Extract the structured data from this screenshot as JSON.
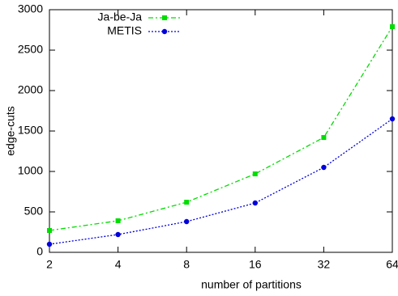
{
  "chart_data": {
    "type": "line",
    "x_label": "number of partitions",
    "y_label": "edge-cuts",
    "x": [
      2,
      4,
      8,
      16,
      32,
      64
    ],
    "xscale": "log2",
    "xlim": [
      2,
      64
    ],
    "xticks": [
      2,
      4,
      8,
      16,
      32,
      64
    ],
    "ylim": [
      0,
      3000
    ],
    "yticks": [
      0,
      500,
      1000,
      1500,
      2000,
      2500,
      3000
    ],
    "legend": "top-left",
    "series": [
      {
        "name": "Ja-be-Ja",
        "color": "#00dd00",
        "marker": "square",
        "dash": "6 3 2 3",
        "values": [
          270,
          390,
          620,
          970,
          1420,
          2790
        ]
      },
      {
        "name": "METIS",
        "color": "#0000dd",
        "marker": "circle",
        "dash": "2 2",
        "values": [
          100,
          220,
          380,
          610,
          1050,
          1650
        ]
      }
    ]
  }
}
